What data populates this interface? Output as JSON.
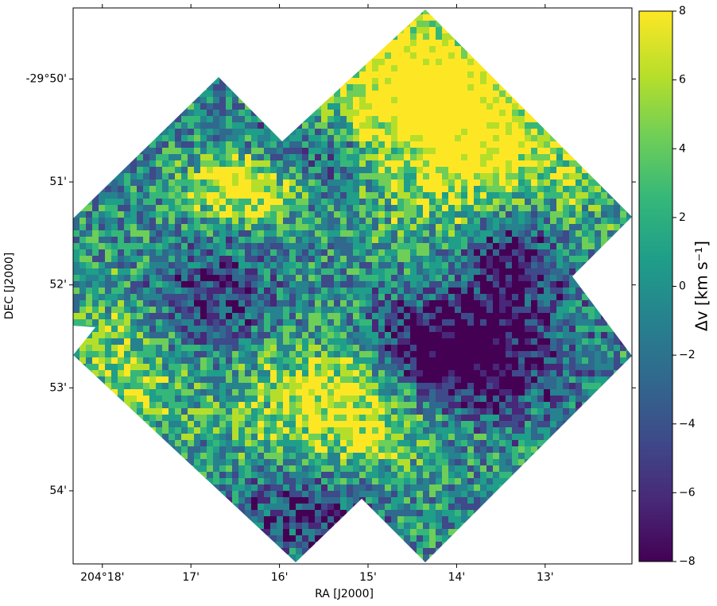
{
  "chart_data": {
    "type": "image",
    "xlabel": "RA [J2000]",
    "ylabel": "DEC [J2000]",
    "xlim": [
      18.33,
      12.02
    ],
    "xticks": [
      {
        "value": 18,
        "label": "204°18'"
      },
      {
        "value": 17,
        "label": "17'"
      },
      {
        "value": 16,
        "label": "16'"
      },
      {
        "value": 15,
        "label": "15'"
      },
      {
        "value": 14,
        "label": "14'"
      },
      {
        "value": 13,
        "label": "13'"
      }
    ],
    "ylim": [
      54.71,
      49.31
    ],
    "yticks": [
      {
        "value": 50,
        "label": "-29°50'"
      },
      {
        "value": 51,
        "label": "51'"
      },
      {
        "value": 52,
        "label": "52'"
      },
      {
        "value": 53,
        "label": "53'"
      },
      {
        "value": 54,
        "label": "54'"
      }
    ],
    "colorbar": {
      "label": "Δv [km s⁻¹]",
      "colormap": "viridis",
      "lim": [
        -8,
        8
      ],
      "ticks": [
        {
          "value": -8,
          "label": "−8"
        },
        {
          "value": -6,
          "label": "−6"
        },
        {
          "value": -4,
          "label": "−4"
        },
        {
          "value": -2,
          "label": "−2"
        },
        0,
        2,
        4,
        6,
        8
      ]
    }
  }
}
